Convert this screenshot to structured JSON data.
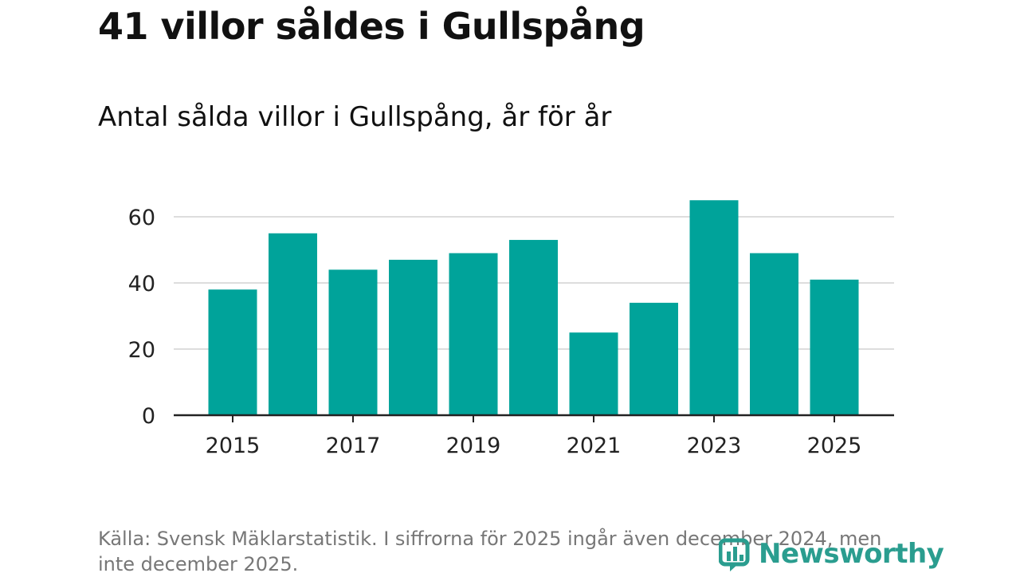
{
  "header": {
    "title": "41 villor såldes i Gullspång",
    "subtitle": "Antal sålda villor i Gullspång, år för år"
  },
  "footer": {
    "source": "Källa: Svensk Mäklarstatistik. I siffrorna för 2025 ingår även december 2024, men inte december 2025."
  },
  "logo": {
    "text": "Newsworthy"
  },
  "colors": {
    "bar": "#00a39a",
    "grid": "#dddddd",
    "axis": "#222222",
    "logo": "#2a9d8f"
  },
  "chart_data": {
    "type": "bar",
    "categories": [
      "2015",
      "2016",
      "2017",
      "2018",
      "2019",
      "2020",
      "2021",
      "2022",
      "2023",
      "2024",
      "2025"
    ],
    "values": [
      38,
      55,
      44,
      47,
      49,
      53,
      25,
      34,
      65,
      49,
      41
    ],
    "xtick_labels": [
      "2015",
      "2017",
      "2019",
      "2021",
      "2023",
      "2025"
    ],
    "yticks": [
      0,
      20,
      40,
      60
    ],
    "ylim": [
      0,
      70
    ],
    "grid": true
  }
}
